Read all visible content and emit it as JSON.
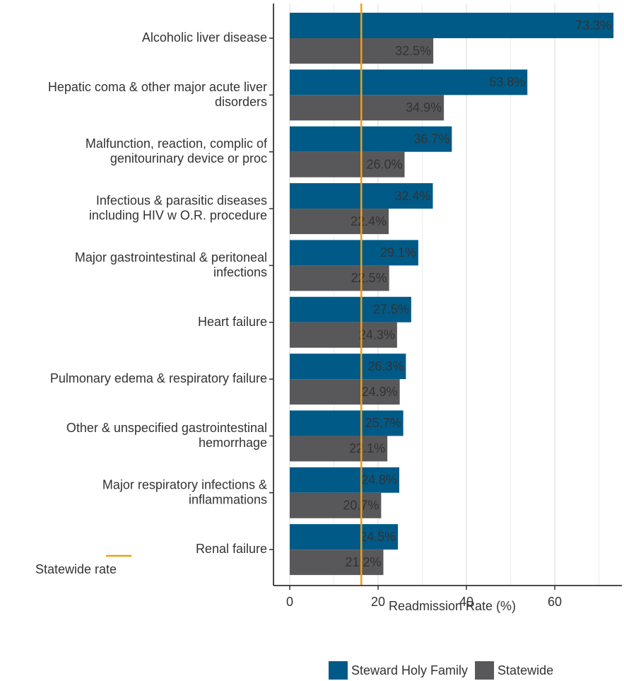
{
  "chart_data": {
    "type": "bar",
    "orientation": "horizontal",
    "categories": [
      "Alcoholic liver disease",
      "Hepatic coma & other major acute liver\ndisorders",
      "Malfunction, reaction, complic of\ngenitourinary device or proc",
      "Infectious & parasitic diseases\nincluding HIV w O.R. procedure",
      "Major gastrointestinal & peritoneal\ninfections",
      "Heart failure",
      "Pulmonary edema & respiratory failure",
      "Other & unspecified gastrointestinal\nhemorrhage",
      "Major respiratory infections &\ninflammations",
      "Renal failure"
    ],
    "series": [
      {
        "name": "Steward Holy Family",
        "color": "#005a87",
        "values": [
          73.3,
          53.8,
          36.7,
          32.4,
          29.1,
          27.5,
          26.3,
          25.7,
          24.8,
          24.5
        ],
        "value_labels": [
          "73.3%",
          "53.8%",
          "36.7%",
          "32.4%",
          "29.1%",
          "27.5%",
          "26.3%",
          "25.7%",
          "24.8%",
          "24.5%"
        ]
      },
      {
        "name": "Statewide",
        "color": "#58585a",
        "values": [
          32.5,
          34.9,
          26.0,
          22.4,
          22.5,
          24.3,
          24.9,
          22.1,
          20.7,
          21.2
        ],
        "value_labels": [
          "32.5%",
          "34.9%",
          "26.0%",
          "22.4%",
          "22.5%",
          "24.3%",
          "24.9%",
          "22.1%",
          "20.7%",
          "21.2%"
        ]
      }
    ],
    "reference_line": {
      "name": "Statewide rate",
      "value": 16.2,
      "color": "#f39c12"
    },
    "xlabel": "Readmission Rate (%)",
    "xlim": [
      -3.68,
      75.2
    ],
    "xticks": [
      0,
      20,
      40,
      60
    ],
    "xticks_minor": [
      10,
      30,
      50,
      70
    ],
    "grid": true,
    "legend": "bottom"
  }
}
